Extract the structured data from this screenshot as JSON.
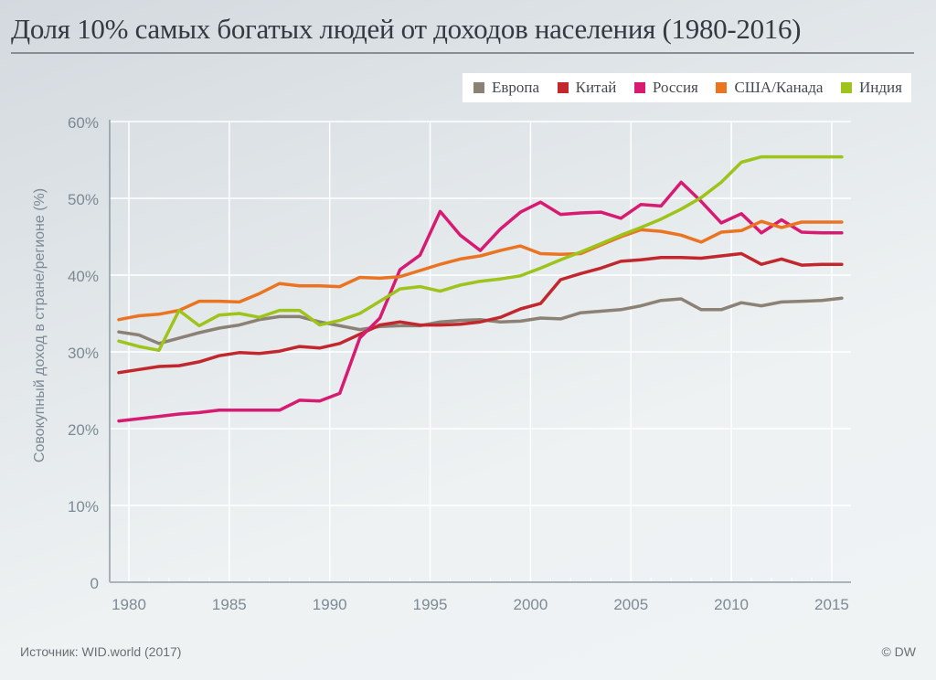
{
  "chart_data": {
    "type": "line",
    "title": "Доля 10% самых богатых людей от доходов населения (1980-2016)",
    "xlabel": "",
    "ylabel": "Совокупный доход в стране/регионе (%)",
    "ylim": [
      0,
      60
    ],
    "xlim": [
      1980,
      2016
    ],
    "grid": true,
    "legend_position": "top-right",
    "y_ticks": [
      0,
      10,
      20,
      30,
      40,
      50,
      60
    ],
    "y_tick_labels": [
      "0",
      "10%",
      "20%",
      "30%",
      "40%",
      "50%",
      "60%"
    ],
    "x_ticks": [
      1980,
      1985,
      1990,
      1995,
      2000,
      2005,
      2010,
      2015
    ],
    "x_tick_labels": [
      "1980",
      "1985",
      "1990",
      "1995",
      "2000",
      "2005",
      "2010",
      "2015"
    ],
    "x": [
      1980,
      1981,
      1982,
      1983,
      1984,
      1985,
      1986,
      1987,
      1988,
      1989,
      1990,
      1991,
      1992,
      1993,
      1994,
      1995,
      1996,
      1997,
      1998,
      1999,
      2000,
      2001,
      2002,
      2003,
      2004,
      2005,
      2006,
      2007,
      2008,
      2009,
      2010,
      2011,
      2012,
      2013,
      2014,
      2015,
      2016
    ],
    "series": [
      {
        "name": "Европа",
        "color": "#8c8175",
        "values": [
          32.6,
          32.2,
          31.1,
          31.8,
          32.5,
          33.1,
          33.5,
          34.2,
          34.6,
          34.6,
          33.9,
          33.4,
          32.9,
          33.3,
          33.4,
          33.4,
          33.9,
          34.1,
          34.2,
          33.9,
          34.0,
          34.4,
          34.3,
          35.1,
          35.3,
          35.5,
          36.0,
          36.7,
          36.9,
          35.5,
          35.5,
          36.4,
          36.0,
          36.5,
          36.6,
          36.7,
          37.0
        ]
      },
      {
        "name": "Китай",
        "color": "#c1272d",
        "values": [
          27.3,
          27.7,
          28.1,
          28.2,
          28.7,
          29.5,
          29.9,
          29.8,
          30.1,
          30.7,
          30.5,
          31.1,
          32.3,
          33.5,
          33.9,
          33.5,
          33.5,
          33.6,
          33.9,
          34.5,
          35.6,
          36.3,
          39.4,
          40.2,
          40.9,
          41.8,
          42.0,
          42.3,
          42.3,
          42.2,
          42.5,
          42.8,
          41.4,
          42.1,
          41.3,
          41.4,
          41.4
        ]
      },
      {
        "name": "Россия",
        "color": "#d81b72",
        "values": [
          21.0,
          21.3,
          21.6,
          21.9,
          22.1,
          22.4,
          22.4,
          22.4,
          22.4,
          23.7,
          23.6,
          24.6,
          31.8,
          34.4,
          40.7,
          42.6,
          48.3,
          45.2,
          43.2,
          46.0,
          48.2,
          49.5,
          47.9,
          48.1,
          48.2,
          47.4,
          49.2,
          49.0,
          52.1,
          49.6,
          46.8,
          48.0,
          45.5,
          47.2,
          45.6,
          45.5,
          45.5
        ]
      },
      {
        "name": "США/Канада",
        "color": "#ea7422",
        "values": [
          34.2,
          34.7,
          34.9,
          35.4,
          36.6,
          36.6,
          36.5,
          37.6,
          38.9,
          38.6,
          38.6,
          38.5,
          39.7,
          39.6,
          39.8,
          40.6,
          41.4,
          42.1,
          42.5,
          43.2,
          43.8,
          42.8,
          42.7,
          42.8,
          43.9,
          45.0,
          45.9,
          45.7,
          45.2,
          44.3,
          45.6,
          45.8,
          47.0,
          46.2,
          46.9,
          46.9,
          46.9
        ]
      },
      {
        "name": "Индия",
        "color": "#9ec31b",
        "values": [
          31.4,
          30.7,
          30.2,
          35.4,
          33.4,
          34.8,
          35.0,
          34.5,
          35.4,
          35.4,
          33.5,
          34.1,
          35.0,
          36.6,
          38.2,
          38.5,
          37.9,
          38.7,
          39.2,
          39.5,
          39.9,
          40.9,
          42.0,
          43.0,
          44.1,
          45.2,
          46.2,
          47.3,
          48.6,
          50.1,
          52.1,
          54.7,
          55.4,
          55.4,
          55.4,
          55.4,
          55.4
        ]
      }
    ]
  },
  "footer": {
    "source": "Источник: WID.world (2017)",
    "credit": "© DW"
  }
}
